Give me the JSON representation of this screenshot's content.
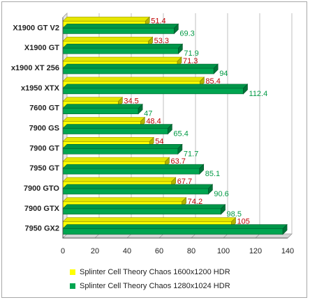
{
  "chart_data": {
    "type": "bar",
    "orientation": "horizontal",
    "style": "3d",
    "categories": [
      "X1900 GT V2",
      "X1900 GT",
      "x1900 XT 256",
      "x1950 XTX",
      "7600 GT",
      "7900 GS",
      "7900 GT",
      "7950 GT",
      "7900 GTO",
      "7900 GTX",
      "7950 GX2"
    ],
    "series": [
      {
        "name": "Splinter Cell Theory Chaos 1600x1200 HDR",
        "color": "#ffff00",
        "label_color": "#c00000",
        "values": [
          51.4,
          53.3,
          71.3,
          85.4,
          34.5,
          48.4,
          54,
          63.7,
          67.7,
          74.2,
          105
        ]
      },
      {
        "name": "Splinter Cell Theory Chaos 1280x1024 HDR",
        "color": "#00a550",
        "label_color": "#009a44",
        "values": [
          69.3,
          71.9,
          94,
          112.4,
          47,
          65.4,
          71.7,
          85.1,
          90.6,
          98.5,
          137
        ]
      }
    ],
    "data_labels": [
      [
        "51.4",
        "69.3"
      ],
      [
        "53.3",
        "71.9"
      ],
      [
        "71.3",
        "94"
      ],
      [
        "85.4",
        "112.4"
      ],
      [
        "34.5",
        "47"
      ],
      [
        "48.4",
        "65.4"
      ],
      [
        "54",
        "71.7"
      ],
      [
        "63.7",
        "85.1"
      ],
      [
        "67.7",
        "90.6"
      ],
      [
        "74.2",
        "98.5"
      ],
      [
        "105",
        ""
      ]
    ],
    "x_ticks": [
      "0",
      "20",
      "40",
      "60",
      "80",
      "100",
      "120",
      "140"
    ],
    "xlim": [
      0,
      140
    ],
    "grid": true,
    "legend_position": "bottom"
  }
}
